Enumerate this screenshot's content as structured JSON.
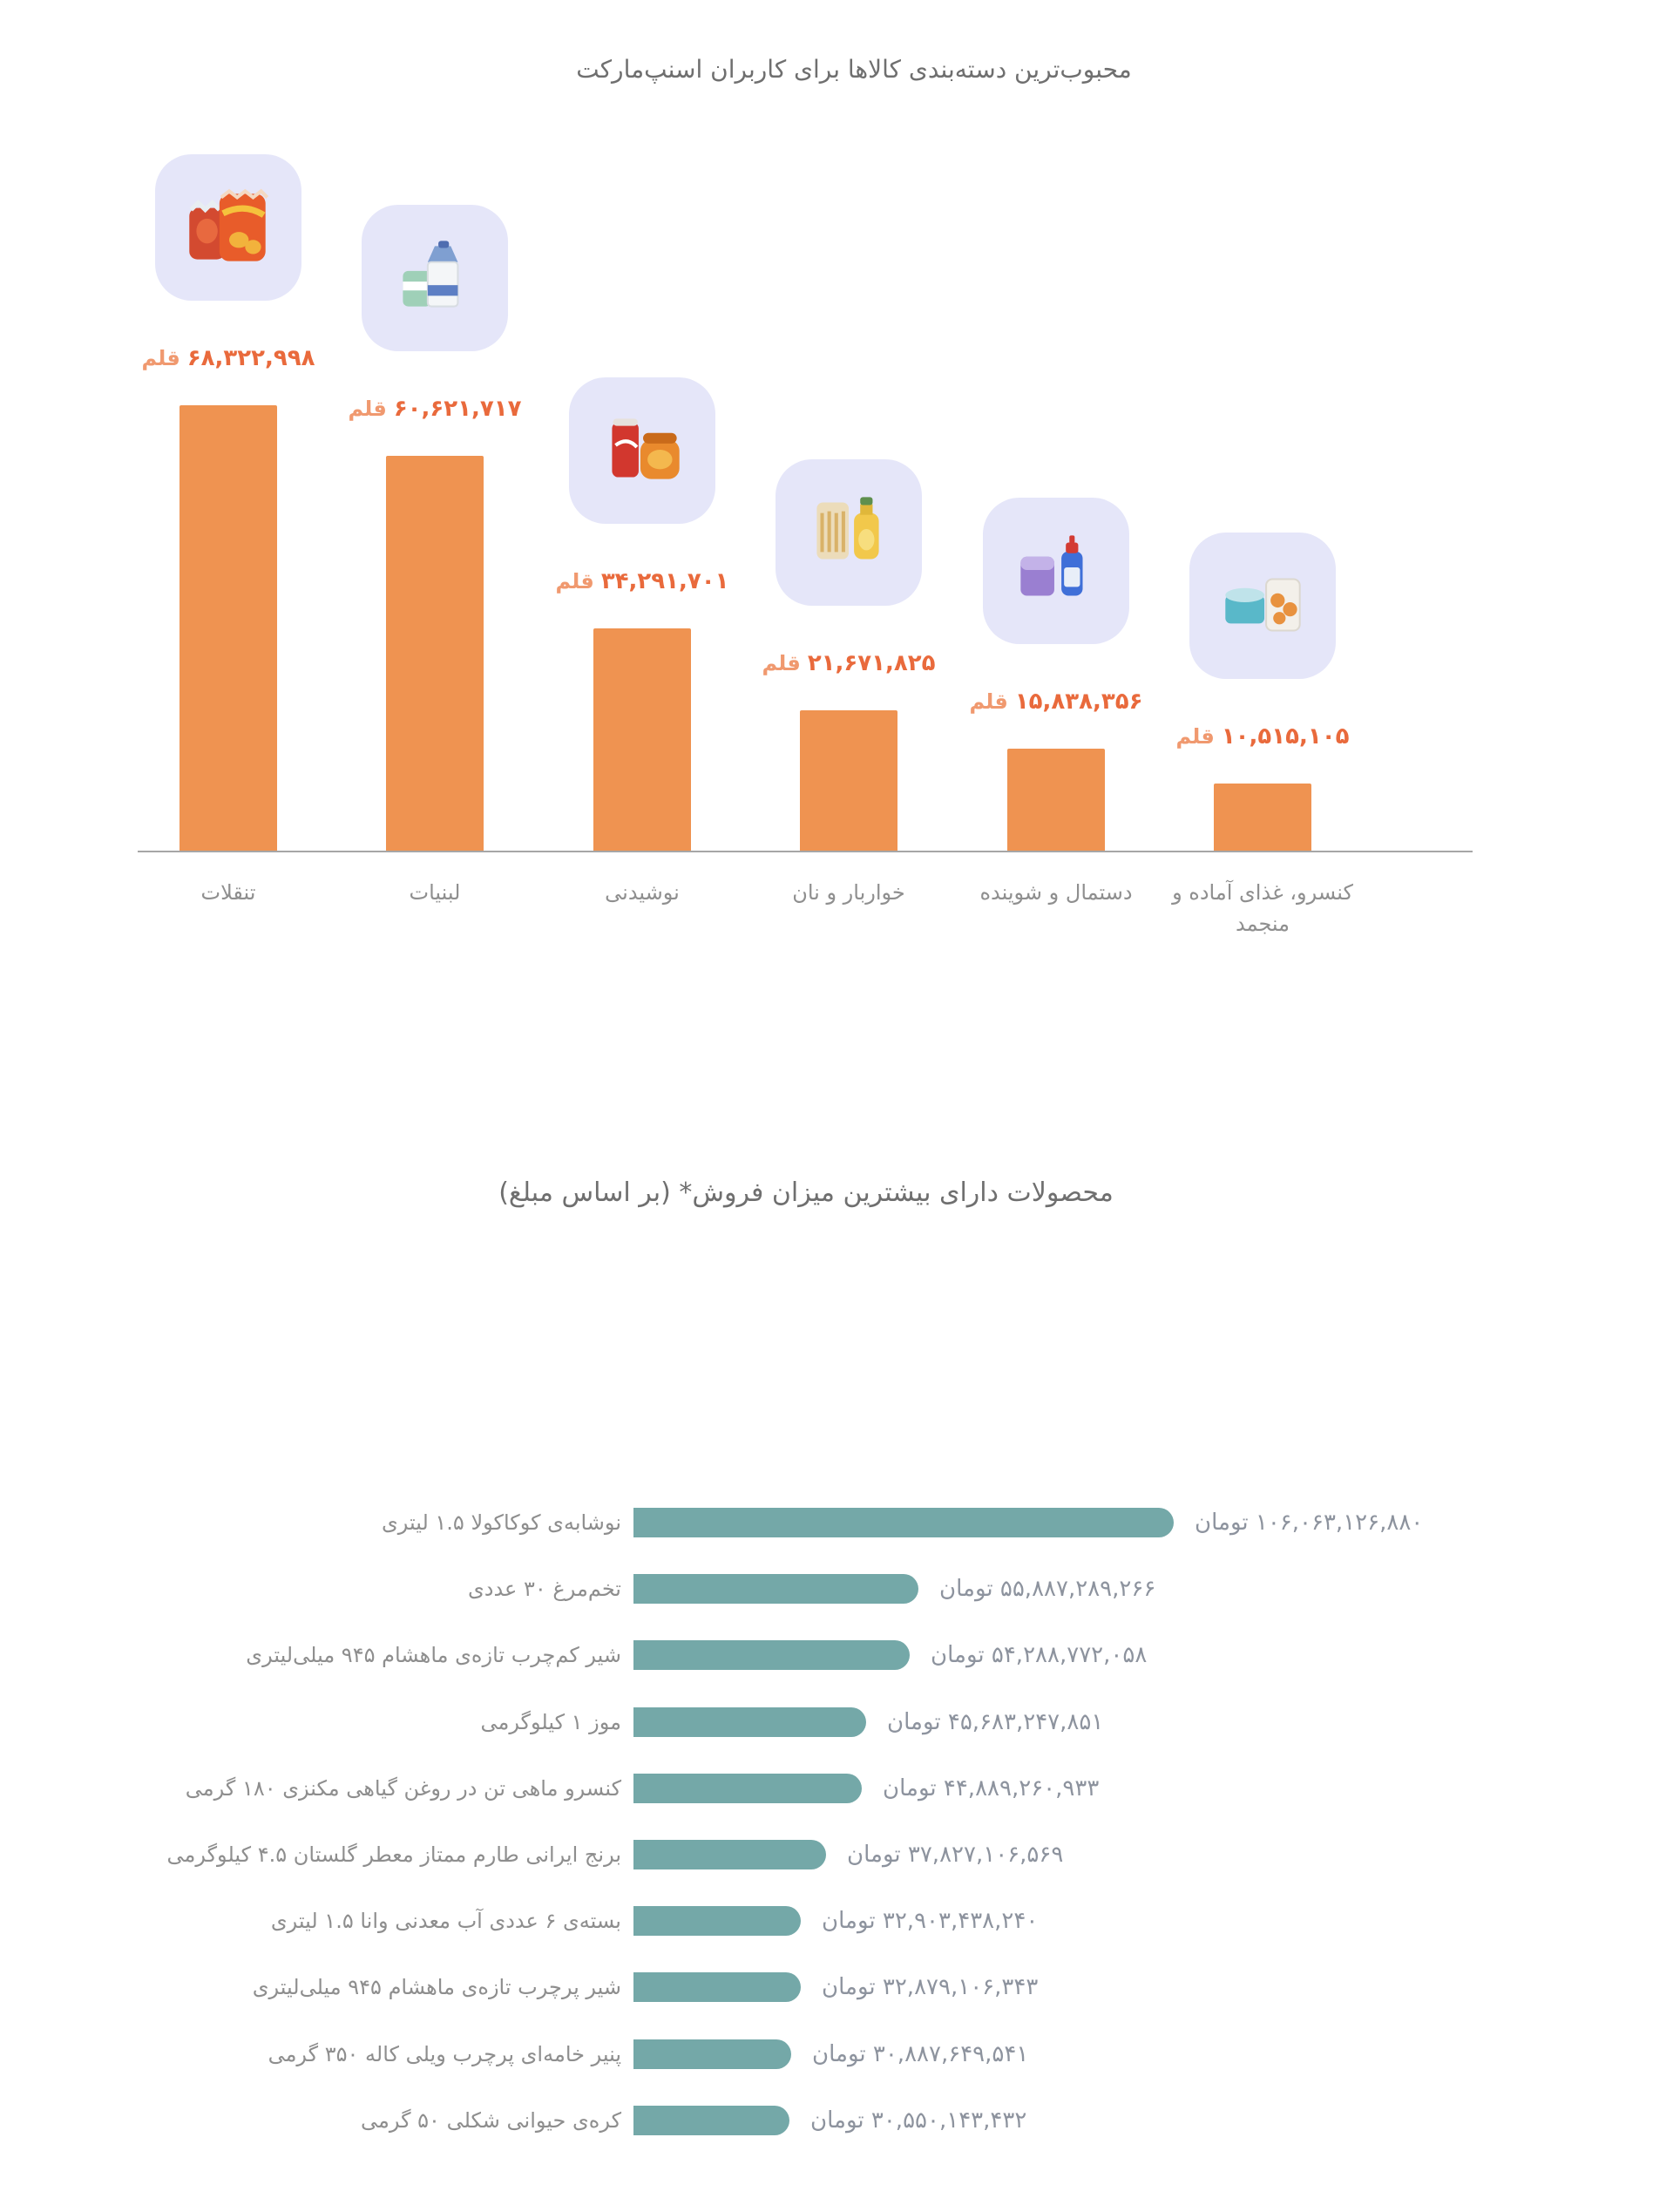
{
  "colors": {
    "category_bar": "#ef9351",
    "category_value_text": "#e96a3c",
    "product_bar": "#74a8a8",
    "product_value_text": "#8d939e",
    "label_gray": "#8f8f8f",
    "title_gray": "#6f6f6f",
    "icon_tile_bg": "#e5e6f9"
  },
  "chart1": {
    "title": "محبوب‌ترین دسته‌بندی کالاها برای کاربران اسنپ‌مارکت",
    "unit": "قلم",
    "categories": [
      {
        "label": "تنقلات",
        "value": 68322998,
        "value_display": "۶۸,۳۲۲,۹۹۸",
        "icon": "chips-bag-icon"
      },
      {
        "label": "لبنیات",
        "value": 60621717,
        "value_display": "۶۰,۶۲۱,۷۱۷",
        "icon": "milk-carton-icon"
      },
      {
        "label": "نوشیدنی",
        "value": 34291701,
        "value_display": "۳۴,۲۹۱,۷۰۱",
        "icon": "soda-can-icon"
      },
      {
        "label": "خواربار و نان",
        "value": 21671825,
        "value_display": "۲۱,۶۷۱,۸۲۵",
        "icon": "pasta-oil-icon"
      },
      {
        "label": "دستمال و شوینده",
        "value": 15838356,
        "value_display": "۱۵,۸۳۸,۳۵۶",
        "icon": "detergent-icon"
      },
      {
        "label": "کنسرو، غذای آماده و منجمد",
        "value": 10515105,
        "value_display": "۱۰,۵۱۵,۱۰۵",
        "icon": "canned-food-icon"
      }
    ]
  },
  "chart2": {
    "title": "محصولات دارای بیشترین میزان فروش* (بر اساس مبلغ)",
    "unit": "تومان",
    "rows": [
      {
        "label": "نوشابه‌ی کوکاکولا ۱.۵ لیتری",
        "value": 106063126880,
        "value_display": "۱۰۶,۰۶۳,۱۲۶,۸۸۰ تومان"
      },
      {
        "label": "تخم‌مرغ ۳۰ عددی",
        "value": 55887289266,
        "value_display": "۵۵,۸۸۷,۲۸۹,۲۶۶ تومان"
      },
      {
        "label": "شیر کم‌چرب تازه‌ی ماهشام ۹۴۵ میلی‌لیتری",
        "value": 54288772058,
        "value_display": "۵۴,۲۸۸,۷۷۲,۰۵۸ تومان"
      },
      {
        "label": "موز ۱ کیلوگرمی",
        "value": 45683247851,
        "value_display": "۴۵,۶۸۳,۲۴۷,۸۵۱ تومان"
      },
      {
        "label": "کنسرو ماهی تن در روغن گیاهی مکنزی ۱۸۰ گرمی",
        "value": 44889260933,
        "value_display": "۴۴,۸۸۹,۲۶۰,۹۳۳ تومان"
      },
      {
        "label": "برنج ایرانی طارم ممتاز معطر گلستان ۴.۵ کیلوگرمی",
        "value": 37827106569,
        "value_display": "۳۷,۸۲۷,۱۰۶,۵۶۹ تومان"
      },
      {
        "label": "بسته‌ی ۶ عددی آب معدنی وانا ۱.۵ لیتری",
        "value": 32903438240,
        "value_display": "۳۲,۹۰۳,۴۳۸,۲۴۰ تومان"
      },
      {
        "label": "شیر پرچرب تازه‌ی ماهشام ۹۴۵ میلی‌لیتری",
        "value": 32879106343,
        "value_display": "۳۲,۸۷۹,۱۰۶,۳۴۳ تومان"
      },
      {
        "label": "پنیر خامه‌ای پرچرب ویلی کاله ۳۵۰ گرمی",
        "value": 30887649541,
        "value_display": "۳۰,۸۸۷,۶۴۹,۵۴۱ تومان"
      },
      {
        "label": "کره‌ی حیوانی شکلی ۵۰ گرمی",
        "value": 30550143432,
        "value_display": "۳۰,۵۵۰,۱۴۳,۴۳۲ تومان"
      }
    ]
  },
  "chart_data": [
    {
      "type": "bar",
      "orientation": "vertical",
      "title": "محبوب‌ترین دسته‌بندی کالاها برای کاربران اسنپ‌مارکت",
      "categories": [
        "تنقلات",
        "لبنیات",
        "نوشیدنی",
        "خواربار و نان",
        "دستمال و شوینده",
        "کنسرو، غذای آماده و منجمد"
      ],
      "values": [
        68322998,
        60621717,
        34291701,
        21671825,
        15838356,
        10515105
      ],
      "unit": "قلم",
      "xlabel": "",
      "ylabel": "",
      "ylim": [
        0,
        68322998
      ],
      "grid": false,
      "legend": false,
      "bar_color": "#ef9351"
    },
    {
      "type": "bar",
      "orientation": "horizontal",
      "title": "محصولات دارای بیشترین میزان فروش* (بر اساس مبلغ)",
      "categories": [
        "نوشابه‌ی کوکاکولا ۱.۵ لیتری",
        "تخم‌مرغ ۳۰ عددی",
        "شیر کم‌چرب تازه‌ی ماهشام ۹۴۵ میلی‌لیتری",
        "موز ۱ کیلوگرمی",
        "کنسرو ماهی تن در روغن گیاهی مکنزی ۱۸۰ گرمی",
        "برنج ایرانی طارم ممتاز معطر گلستان ۴.۵ کیلوگرمی",
        "بسته‌ی ۶ عددی آب معدنی وانا ۱.۵ لیتری",
        "شیر پرچرب تازه‌ی ماهشام ۹۴۵ میلی‌لیتری",
        "پنیر خامه‌ای پرچرب ویلی کاله ۳۵۰ گرمی",
        "کره‌ی حیوانی شکلی ۵۰ گرمی"
      ],
      "values": [
        106063126880,
        55887289266,
        54288772058,
        45683247851,
        44889260933,
        37827106569,
        32903438240,
        32879106343,
        30887649541,
        30550143432
      ],
      "unit": "تومان",
      "xlim": [
        0,
        106063126880
      ],
      "grid": false,
      "legend": false,
      "bar_color": "#74a8a8"
    }
  ]
}
